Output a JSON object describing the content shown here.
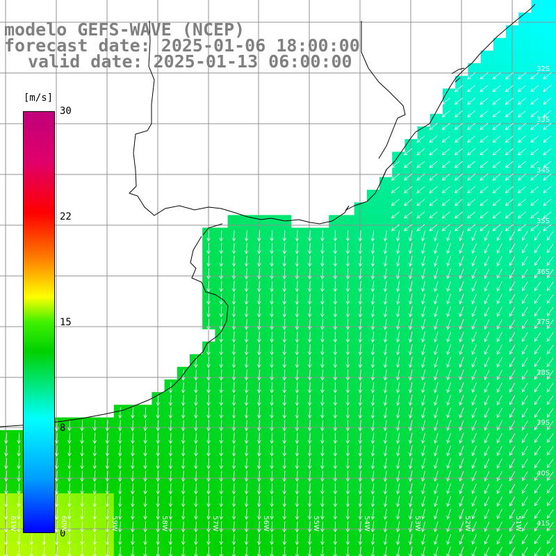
{
  "header": {
    "line1": "modelo GEFS-WAVE (NCEP)",
    "line2": "forecast date: 2025-01-06 18:00:00",
    "line3": "valid date: 2025-01-13 06:00:00"
  },
  "colorbar": {
    "unit": "[m/s]",
    "ticks": [
      "30",
      "22",
      "15",
      "8",
      "0"
    ],
    "tick_values": [
      30,
      22,
      15,
      8,
      0
    ],
    "colors": [
      "#0000ff",
      "#00ffff",
      "#00d000",
      "#ffff00",
      "#ff0000",
      "#c0007a"
    ]
  },
  "lat_labels": [
    "32S",
    "33S",
    "34S",
    "35S",
    "36S",
    "37S",
    "38S",
    "39S",
    "40S",
    "41S"
  ],
  "lon_labels": [
    "61W",
    "60W",
    "59W",
    "58W",
    "57W",
    "56W",
    "55W",
    "54W",
    "53W",
    "52W",
    "51W"
  ],
  "colors": {
    "land": "#ffffff",
    "grid": "#909090",
    "coast": "#000000",
    "arrows": "#ffffff"
  }
}
